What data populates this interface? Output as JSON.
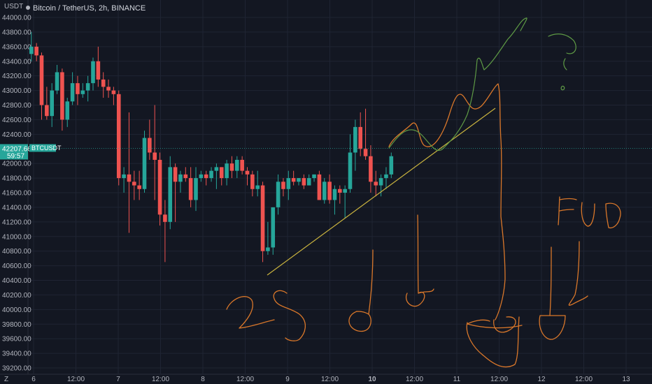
{
  "header": {
    "title": "Bitcoin / TetherUS, 2h, BINANCE",
    "currency": "USDT"
  },
  "price_badge": {
    "symbol": "BTCUSDT",
    "price": "42207.66",
    "countdown": "59:57"
  },
  "footer": {
    "scale_label": "Z"
  },
  "colors": {
    "background": "#131722",
    "grid": "#1f2433",
    "up": "#26a69a",
    "down": "#ef5350",
    "trendline": "#c9b33f",
    "drawing_orange": "#d9772a",
    "drawing_green": "#5e9a45",
    "badge": "#26a69a"
  },
  "chart_data": {
    "type": "candlestick",
    "title": "Bitcoin / TetherUS, 2h, BINANCE",
    "ylim": [
      39200,
      44000
    ],
    "y_ticks": [
      "44000.00",
      "43800.00",
      "43600.00",
      "43400.00",
      "43200.00",
      "43000.00",
      "42800.00",
      "42600.00",
      "42400.00",
      "42200.00",
      "42000.00",
      "41800.00",
      "41600.00",
      "41400.00",
      "41200.00",
      "41000.00",
      "40800.00",
      "40600.00",
      "40400.00",
      "40200.00",
      "40000.00",
      "39800.00",
      "39600.00",
      "39400.00",
      "39200.00"
    ],
    "y_ticks_visible": [
      "44000.00",
      "43800.00",
      "43600.00",
      "43400.00",
      "43200.00",
      "43000.00",
      "42800.00",
      "42600.00",
      "42400.00",
      "42000.00",
      "41800.00",
      "41600.00",
      "41400.00",
      "41200.00",
      "41000.00",
      "40800.00",
      "40600.00",
      "40400.00",
      "40200.00",
      "40000.00",
      "39800.00",
      "39600.00",
      "39400.00",
      "39200.00"
    ],
    "x_tick_labels": [
      "6",
      "12:00",
      "7",
      "12:00",
      "8",
      "12:00",
      "9",
      "12:00",
      "10",
      "12:00",
      "11",
      "12:00",
      "12",
      "12:00",
      "13"
    ],
    "current_price": 42207.66,
    "candles": [
      [
        43500,
        43800,
        43400,
        43600
      ],
      [
        43600,
        43650,
        43400,
        43480
      ],
      [
        43480,
        43520,
        42600,
        42800
      ],
      [
        42800,
        43050,
        42600,
        42650
      ],
      [
        42650,
        43100,
        42500,
        43000
      ],
      [
        43000,
        43350,
        42950,
        43250
      ],
      [
        43250,
        43300,
        42450,
        42600
      ],
      [
        42600,
        42900,
        42500,
        42850
      ],
      [
        42850,
        43250,
        42800,
        43100
      ],
      [
        43100,
        43200,
        42800,
        42950
      ],
      [
        42950,
        43100,
        42900,
        43000
      ],
      [
        43000,
        43200,
        42850,
        43100
      ],
      [
        43100,
        43450,
        43000,
        43400
      ],
      [
        43400,
        43600,
        43050,
        43150
      ],
      [
        43150,
        43250,
        42900,
        43050
      ],
      [
        43050,
        43150,
        42900,
        43000
      ],
      [
        43000,
        43050,
        42800,
        42950
      ],
      [
        42950,
        43000,
        41700,
        41800
      ],
      [
        41800,
        41950,
        41600,
        41850
      ],
      [
        41850,
        42700,
        41050,
        41750
      ],
      [
        41750,
        41900,
        41500,
        41700
      ],
      [
        41700,
        41900,
        41500,
        41650
      ],
      [
        41650,
        42450,
        41600,
        42350
      ],
      [
        42350,
        42600,
        42050,
        42150
      ],
      [
        42150,
        42800,
        41500,
        42050
      ],
      [
        42050,
        42150,
        41150,
        41300
      ],
      [
        41300,
        41500,
        40650,
        41200
      ],
      [
        41200,
        42100,
        41100,
        41950
      ],
      [
        41950,
        42000,
        41200,
        41750
      ],
      [
        41750,
        41900,
        41600,
        41850
      ],
      [
        41850,
        41950,
        41750,
        41800
      ],
      [
        41800,
        41950,
        41400,
        41500
      ],
      [
        41500,
        41950,
        41350,
        41800
      ],
      [
        41800,
        41900,
        41750,
        41850
      ],
      [
        41850,
        41900,
        41700,
        41800
      ],
      [
        41800,
        41950,
        41750,
        41900
      ],
      [
        41900,
        42000,
        41650,
        41950
      ],
      [
        41950,
        41950,
        41700,
        41800
      ],
      [
        41800,
        42050,
        41700,
        42000
      ],
      [
        42000,
        42100,
        41800,
        41900
      ],
      [
        41900,
        42100,
        41800,
        42050
      ],
      [
        42050,
        42100,
        41850,
        41900
      ],
      [
        41900,
        41950,
        41700,
        41850
      ],
      [
        41850,
        41900,
        41550,
        41650
      ],
      [
        41650,
        41900,
        41550,
        41700
      ],
      [
        41700,
        41750,
        40650,
        40800
      ],
      [
        40800,
        41200,
        40750,
        40850
      ],
      [
        40850,
        41400,
        40750,
        41400
      ],
      [
        41400,
        41850,
        41300,
        41750
      ],
      [
        41750,
        41800,
        41550,
        41650
      ],
      [
        41650,
        41900,
        41500,
        41800
      ],
      [
        41800,
        41900,
        41700,
        41750
      ],
      [
        41750,
        41800,
        41700,
        41800
      ],
      [
        41800,
        41850,
        41650,
        41700
      ],
      [
        41700,
        41850,
        41700,
        41800
      ],
      [
        41800,
        41850,
        41750,
        41850
      ],
      [
        41850,
        41900,
        41500,
        41500
      ],
      [
        41500,
        41800,
        41450,
        41750
      ],
      [
        41750,
        41850,
        41450,
        41500
      ],
      [
        41500,
        41700,
        41300,
        41650
      ],
      [
        41650,
        41700,
        41450,
        41600
      ],
      [
        41600,
        41700,
        41250,
        41650
      ],
      [
        41650,
        42400,
        41600,
        42150
      ],
      [
        42150,
        42600,
        41900,
        42500
      ],
      [
        42500,
        42700,
        42100,
        42200
      ],
      [
        42200,
        42750,
        42050,
        42100
      ],
      [
        42100,
        42250,
        41600,
        41750
      ],
      [
        41750,
        41900,
        41550,
        41700
      ],
      [
        41700,
        41850,
        41550,
        41800
      ],
      [
        41800,
        41950,
        41650,
        41850
      ],
      [
        41850,
        42150,
        41800,
        42100
      ]
    ]
  },
  "drawings": {
    "texts": [
      "25",
      "FUD",
      "?"
    ]
  }
}
